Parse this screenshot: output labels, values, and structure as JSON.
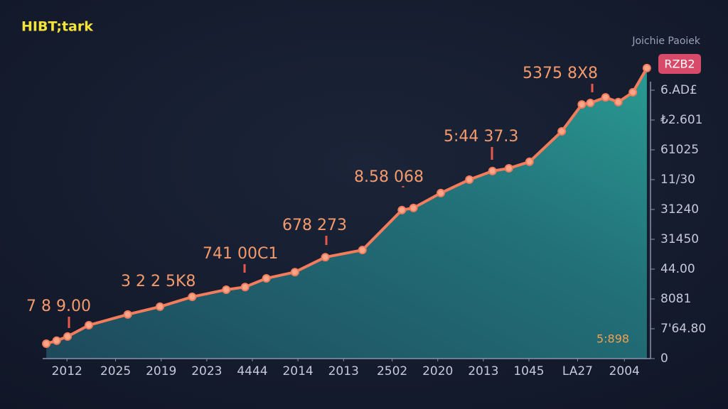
{
  "header": {
    "logo": "HIBT;tark",
    "caption": "Joichie Paoiek",
    "badge": "RZB2"
  },
  "chart_data": {
    "type": "area",
    "series": [
      {
        "color": "#f27c5c",
        "x": [
          0.6,
          2.3,
          4.1,
          7.6,
          14,
          19.3,
          24.6,
          30.2,
          33.3,
          36.8,
          41.5,
          46.5,
          52.6,
          59.1,
          61,
          65.5,
          70.2,
          74,
          76.7,
          80.1,
          85.4,
          88.7,
          90.1,
          92.6,
          94.7,
          97.1,
          99.4
        ],
        "values": [
          5,
          6,
          7.4,
          11.2,
          14.8,
          17.4,
          20.7,
          23.1,
          24,
          26.9,
          29,
          34,
          36.4,
          49.8,
          50.5,
          55.5,
          60,
          62.9,
          63.8,
          66,
          76.2,
          85.2,
          85.7,
          87.6,
          86,
          89.3,
          97.4
        ]
      }
    ],
    "xlim": [
      0,
      100
    ],
    "xticks": [
      {
        "value": 4,
        "label": "2012"
      },
      {
        "value": 12,
        "label": "2025"
      },
      {
        "value": 19.5,
        "label": "2019"
      },
      {
        "value": 27,
        "label": "2023"
      },
      {
        "value": 34.5,
        "label": "4444"
      },
      {
        "value": 42,
        "label": "2014"
      },
      {
        "value": 49.5,
        "label": "2013"
      },
      {
        "value": 57.5,
        "label": "2502"
      },
      {
        "value": 65,
        "label": "2020"
      },
      {
        "value": 72.5,
        "label": "2013"
      },
      {
        "value": 80,
        "label": "1045"
      },
      {
        "value": 88,
        "label": "LA27"
      },
      {
        "value": 95.7,
        "label": "2004"
      }
    ],
    "ylim": [
      0,
      100
    ],
    "yticks": [
      0,
      {
        "value": 10,
        "label": "7'64.80"
      },
      {
        "value": 20,
        "label": "8081"
      },
      {
        "value": 30,
        "label": "44.00"
      },
      {
        "value": 40,
        "label": "31450"
      },
      {
        "value": 50,
        "label": "31240"
      },
      {
        "value": 60,
        "label": "11/30"
      },
      {
        "value": 70,
        "label": "61025"
      },
      {
        "value": 80,
        "label": "₺2.601"
      },
      {
        "value": 90,
        "label": "6.AD£"
      }
    ],
    "annotations": [
      "7 8 9.00",
      "3 2 2 5K8",
      "741 00C1",
      "678 273",
      "8.58 068",
      "5:44 37.3",
      "5375 8X8"
    ],
    "footnote": "5:898"
  }
}
